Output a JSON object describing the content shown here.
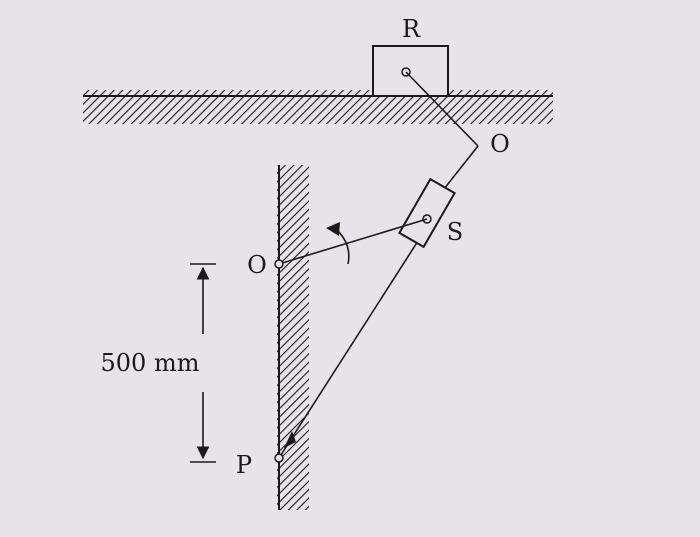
{
  "diagram": {
    "labels": {
      "block": "R",
      "crank_end": "O",
      "slider": "S",
      "fixed_pivot": "O",
      "bottom_pivot": "P"
    },
    "dimension": {
      "text": "500 mm"
    },
    "colors": {
      "background": "#e6e4e8",
      "ink": "#1a1a1a"
    }
  }
}
